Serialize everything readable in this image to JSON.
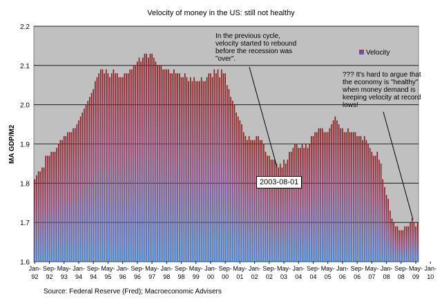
{
  "chart_data": {
    "type": "bar",
    "title": "Velocity of money in the US: still not healthy",
    "ylabel": "MA GDP/M2",
    "xlabel": "",
    "ylim": [
      1.6,
      2.2
    ],
    "yticks": [
      "1.6",
      "1.7",
      "1.8",
      "1.9",
      "2.0",
      "2.1",
      "2.2"
    ],
    "xtick_labels": [
      [
        "Jan-",
        "92"
      ],
      [
        "Sep-",
        "92"
      ],
      [
        "May-",
        "93"
      ],
      [
        "Jan-",
        "94"
      ],
      [
        "Sep-",
        "94"
      ],
      [
        "May-",
        "95"
      ],
      [
        "Jan-",
        "96"
      ],
      [
        "Sep-",
        "96"
      ],
      [
        "May-",
        "97"
      ],
      [
        "Jan-",
        "98"
      ],
      [
        "Sep-",
        "98"
      ],
      [
        "May-",
        "99"
      ],
      [
        "Jan-",
        "00"
      ],
      [
        "Sep-",
        "00"
      ],
      [
        "May-",
        "01"
      ],
      [
        "Jan-",
        "02"
      ],
      [
        "Sep-",
        "02"
      ],
      [
        "May-",
        "03"
      ],
      [
        "Jan-",
        "04"
      ],
      [
        "Sep-",
        "04"
      ],
      [
        "May-",
        "05"
      ],
      [
        "Jan-",
        "06"
      ],
      [
        "Sep-",
        "06"
      ],
      [
        "May-",
        "07"
      ],
      [
        "Jan-",
        "08"
      ],
      [
        "Sep-",
        "08"
      ],
      [
        "May-",
        "09"
      ],
      [
        "Jan-",
        "10"
      ]
    ],
    "series": [
      {
        "name": "Velocity",
        "start": "1992-01",
        "frequency": "monthly",
        "values": [
          1.81,
          1.82,
          1.83,
          1.83,
          1.84,
          1.84,
          1.87,
          1.87,
          1.87,
          1.88,
          1.88,
          1.88,
          1.89,
          1.9,
          1.91,
          1.91,
          1.92,
          1.92,
          1.93,
          1.93,
          1.93,
          1.94,
          1.94,
          1.95,
          1.96,
          1.97,
          1.98,
          1.99,
          2.0,
          2.01,
          2.02,
          2.03,
          2.04,
          2.06,
          2.07,
          2.08,
          2.09,
          2.09,
          2.08,
          2.09,
          2.08,
          2.07,
          2.08,
          2.09,
          2.08,
          2.08,
          2.07,
          2.07,
          2.07,
          2.08,
          2.08,
          2.08,
          2.09,
          2.09,
          2.1,
          2.1,
          2.11,
          2.12,
          2.11,
          2.12,
          2.13,
          2.13,
          2.12,
          2.13,
          2.13,
          2.12,
          2.11,
          2.1,
          2.1,
          2.1,
          2.09,
          2.09,
          2.09,
          2.09,
          2.08,
          2.08,
          2.09,
          2.08,
          2.08,
          2.08,
          2.07,
          2.07,
          2.08,
          2.07,
          2.06,
          2.07,
          2.06,
          2.07,
          2.06,
          2.06,
          2.06,
          2.07,
          2.06,
          2.06,
          2.07,
          2.08,
          2.08,
          2.07,
          2.09,
          2.08,
          2.09,
          2.07,
          2.09,
          2.08,
          2.08,
          2.05,
          2.04,
          2.02,
          2.01,
          2.0,
          1.98,
          1.97,
          1.96,
          1.95,
          1.93,
          1.92,
          1.91,
          1.92,
          1.91,
          1.91,
          1.91,
          1.92,
          1.92,
          1.91,
          1.91,
          1.9,
          1.88,
          1.87,
          1.87,
          1.86,
          1.86,
          1.86,
          1.85,
          1.84,
          1.85,
          1.84,
          1.86,
          1.85,
          1.86,
          1.88,
          1.88,
          1.89,
          1.9,
          1.9,
          1.89,
          1.89,
          1.9,
          1.89,
          1.9,
          1.89,
          1.9,
          1.92,
          1.92,
          1.93,
          1.93,
          1.94,
          1.94,
          1.94,
          1.93,
          1.93,
          1.93,
          1.94,
          1.95,
          1.96,
          1.97,
          1.96,
          1.95,
          1.94,
          1.94,
          1.93,
          1.93,
          1.94,
          1.93,
          1.93,
          1.93,
          1.93,
          1.92,
          1.92,
          1.92,
          1.91,
          1.92,
          1.91,
          1.9,
          1.89,
          1.88,
          1.87,
          1.87,
          1.88,
          1.86,
          1.85,
          1.81,
          1.79,
          1.77,
          1.76,
          1.73,
          1.71,
          1.7,
          1.69,
          1.69,
          1.68,
          1.68,
          1.68,
          1.69,
          1.69,
          1.69,
          1.7,
          1.71,
          1.7,
          1.69,
          1.7
        ]
      }
    ],
    "legend": {
      "label": "Velocity",
      "position": "top-right"
    },
    "annotations": [
      [
        "In the previous cycle,",
        "velocity started to rebound",
        "before the recession was",
        "\"over\"."
      ],
      [
        "??? It's hard to argue that",
        "the economy is \"healthy\"",
        "when money demand is",
        "keeping velocity at record",
        "lows!"
      ]
    ],
    "callout_label": "2003-08-01",
    "source": "Source: Federal Reserve (Fred); Macroeconomic Advisers",
    "colors": {
      "plot_background": "#c0c0c0",
      "bar_top": "#8b1a1a",
      "bar_bottom": "#3a7bd5",
      "legend_swatch": "#6a3d8a"
    }
  }
}
